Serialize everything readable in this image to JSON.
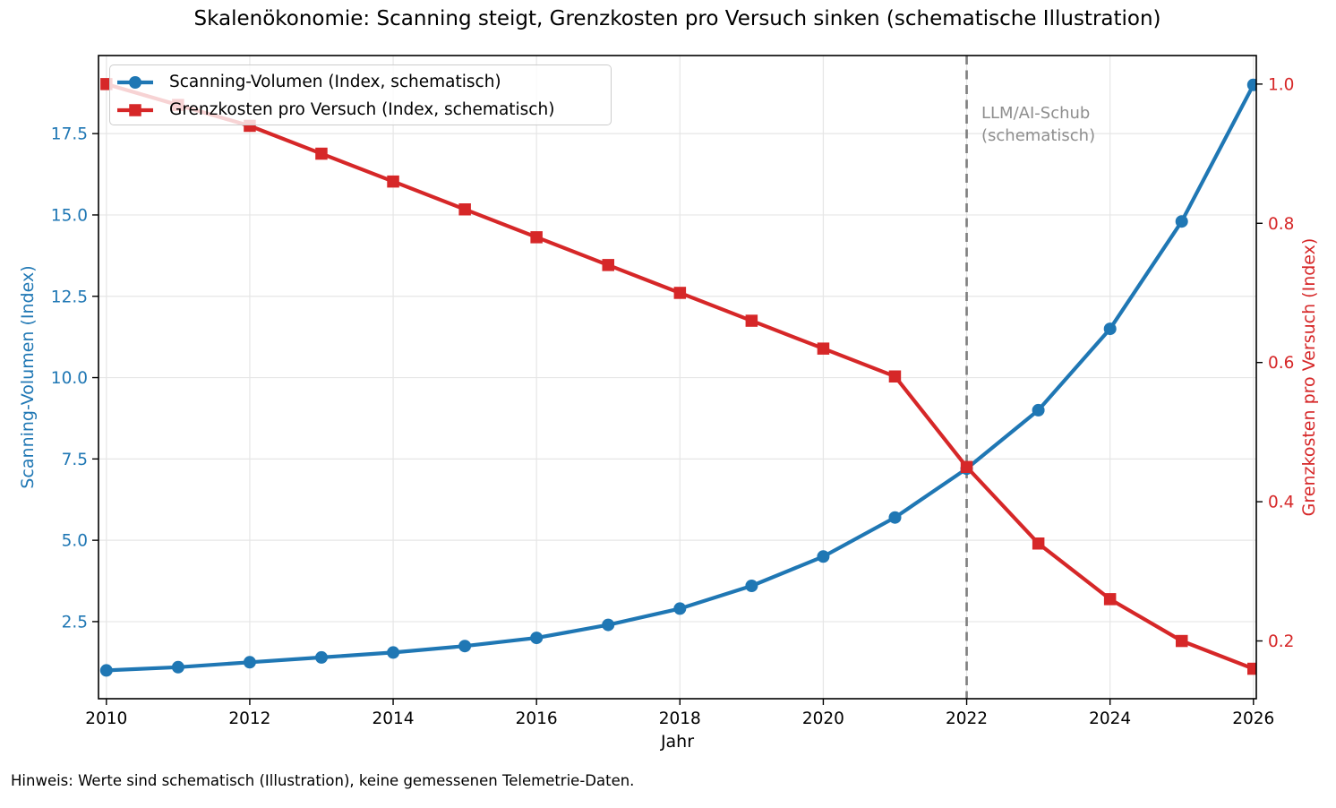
{
  "title": "Skalenökonomie: Scanning steigt, Grenzkosten pro Versuch sinken (schematische Illustration)",
  "footer_note": "Hinweis: Werte sind schematisch (Illustration), keine gemessenen Telemetrie-Daten.",
  "axes": {
    "x_label": "Jahr",
    "y_left_label": "Scanning-Volumen (Index)",
    "y_right_label": "Grenzkosten pro Versuch (Index)"
  },
  "annotation": {
    "line1": "LLM/AI-Schub",
    "line2": "(schematisch)"
  },
  "colors": {
    "blue": "#1f77b4",
    "red": "#d62728",
    "grid": "#e6e6e6",
    "event_line": "#7f7f7f",
    "annotation_text": "#8e8e8e",
    "axis_text": "#000000",
    "legend_border": "#cccccc"
  },
  "chart_data": {
    "type": "line",
    "title": "Skalenökonomie: Scanning steigt, Grenzkosten pro Versuch sinken (schematische Illustration)",
    "xlabel": "Jahr",
    "x": [
      2010,
      2011,
      2012,
      2013,
      2014,
      2015,
      2016,
      2017,
      2018,
      2019,
      2020,
      2021,
      2022,
      2023,
      2024,
      2025,
      2026
    ],
    "series": [
      {
        "name": "Scanning-Volumen (Index, schematisch)",
        "axis": "left",
        "color": "#1f77b4",
        "marker": "circle",
        "values": [
          1.0,
          1.1,
          1.25,
          1.4,
          1.55,
          1.75,
          2.0,
          2.4,
          2.9,
          3.6,
          4.5,
          5.7,
          7.2,
          9.0,
          11.5,
          14.8,
          19.0
        ]
      },
      {
        "name": "Grenzkosten pro Versuch (Index, schematisch)",
        "axis": "right",
        "color": "#d62728",
        "marker": "square",
        "values": [
          1.0,
          0.97,
          0.94,
          0.9,
          0.86,
          0.82,
          0.78,
          0.74,
          0.7,
          0.66,
          0.62,
          0.58,
          0.45,
          0.34,
          0.26,
          0.2,
          0.16
        ]
      }
    ],
    "x_ticks": [
      2010,
      2012,
      2014,
      2016,
      2018,
      2020,
      2022,
      2024,
      2026
    ],
    "y_left_ticks": [
      2.5,
      5.0,
      7.5,
      10.0,
      12.5,
      15.0,
      17.5
    ],
    "y_right_ticks": [
      0.2,
      0.4,
      0.6,
      0.8,
      1.0
    ],
    "xlim": [
      2009.89,
      2026.04
    ],
    "ylim_left": [
      0.13,
      19.9
    ],
    "ylim_right": [
      0.117,
      1.041
    ],
    "event_line": {
      "x": 2022,
      "label": "LLM/AI-Schub (schematisch)",
      "style": "dashed"
    },
    "grid": true,
    "legend_position": "upper left",
    "ylabel_left": "Scanning-Volumen (Index)",
    "ylabel_right": "Grenzkosten pro Versuch (Index)"
  }
}
